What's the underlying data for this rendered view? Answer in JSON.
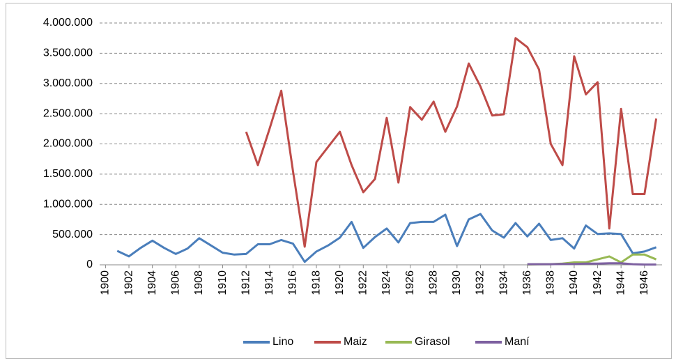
{
  "chart_data": {
    "type": "line",
    "x": [
      1900,
      1901,
      1902,
      1903,
      1904,
      1905,
      1906,
      1907,
      1908,
      1909,
      1910,
      1911,
      1912,
      1913,
      1914,
      1915,
      1916,
      1917,
      1918,
      1919,
      1920,
      1921,
      1922,
      1923,
      1924,
      1925,
      1926,
      1927,
      1928,
      1929,
      1930,
      1931,
      1932,
      1933,
      1934,
      1935,
      1936,
      1937,
      1938,
      1939,
      1940,
      1941,
      1942,
      1943,
      1944,
      1945,
      1946,
      1947
    ],
    "xlim": [
      1899.5,
      1947.5
    ],
    "xticks": [
      1900,
      1902,
      1904,
      1906,
      1908,
      1910,
      1912,
      1914,
      1916,
      1918,
      1920,
      1922,
      1924,
      1926,
      1928,
      1930,
      1932,
      1934,
      1936,
      1938,
      1940,
      1942,
      1944,
      1946
    ],
    "ylim": [
      0,
      4000000
    ],
    "yticks": [
      0,
      {
        "value": 500000,
        "label": "500.000"
      },
      {
        "value": 1000000,
        "label": "1.000.000"
      },
      {
        "value": 1500000,
        "label": "1.500.000"
      },
      {
        "value": 2000000,
        "label": "2.000.000"
      },
      {
        "value": 2500000,
        "label": "2.500.000"
      },
      {
        "value": 3000000,
        "label": "3.000.000"
      },
      {
        "value": 3500000,
        "label": "3.500.000"
      },
      {
        "value": 4000000,
        "label": "4.000.000"
      }
    ],
    "grid": true,
    "legend": "bottom",
    "series": [
      {
        "name": "Lino",
        "color": "#4a7ebb",
        "values": [
          null,
          230000,
          140000,
          280000,
          400000,
          280000,
          180000,
          270000,
          440000,
          320000,
          200000,
          170000,
          180000,
          340000,
          340000,
          410000,
          350000,
          50000,
          220000,
          320000,
          450000,
          710000,
          280000,
          460000,
          600000,
          370000,
          690000,
          710000,
          710000,
          830000,
          310000,
          750000,
          840000,
          570000,
          450000,
          690000,
          470000,
          680000,
          410000,
          440000,
          270000,
          650000,
          510000,
          520000,
          510000,
          190000,
          220000,
          290000
        ]
      },
      {
        "name": "Maiz",
        "color": "#be4b48",
        "values": [
          null,
          null,
          null,
          null,
          null,
          null,
          null,
          null,
          null,
          null,
          null,
          null,
          2200000,
          1650000,
          2250000,
          2880000,
          1550000,
          300000,
          1700000,
          1950000,
          2200000,
          1650000,
          1200000,
          1420000,
          2430000,
          1360000,
          2610000,
          2400000,
          2700000,
          2200000,
          2620000,
          3330000,
          2950000,
          2470000,
          2490000,
          3750000,
          3600000,
          3230000,
          2000000,
          1650000,
          3450000,
          2820000,
          3020000,
          600000,
          2580000,
          1170000,
          1170000,
          2420000
        ]
      },
      {
        "name": "Girasol",
        "color": "#98b954",
        "values": [
          null,
          null,
          null,
          null,
          null,
          null,
          null,
          null,
          null,
          null,
          null,
          null,
          null,
          null,
          null,
          null,
          null,
          null,
          null,
          null,
          null,
          null,
          null,
          null,
          null,
          null,
          null,
          null,
          null,
          null,
          null,
          null,
          null,
          null,
          null,
          null,
          5000,
          8000,
          10000,
          20000,
          40000,
          40000,
          90000,
          140000,
          40000,
          170000,
          170000,
          90000
        ]
      },
      {
        "name": "Maní",
        "color": "#7d60a0",
        "values": [
          null,
          null,
          null,
          null,
          null,
          null,
          null,
          null,
          null,
          null,
          null,
          null,
          null,
          null,
          null,
          null,
          null,
          null,
          null,
          null,
          null,
          null,
          null,
          null,
          null,
          null,
          null,
          null,
          null,
          null,
          null,
          null,
          null,
          null,
          null,
          null,
          10000,
          10000,
          10000,
          15000,
          15000,
          20000,
          20000,
          25000,
          25000,
          10000,
          5000,
          5000
        ]
      }
    ]
  }
}
